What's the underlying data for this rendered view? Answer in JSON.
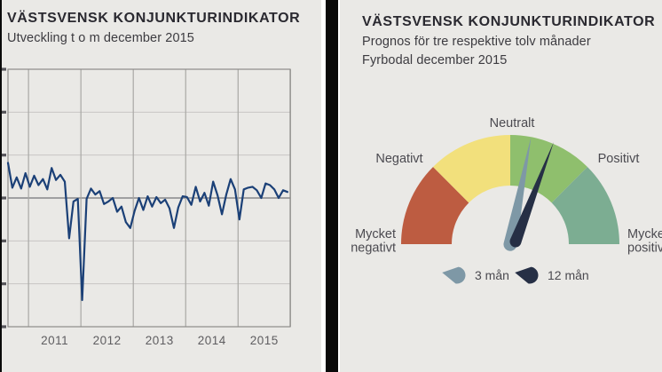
{
  "left_panel": {
    "title": "VÄSTSVENSK KONJUNKTURINDIKATOR",
    "subtitle": "Utveckling t o m december 2015"
  },
  "right_panel": {
    "title": "VÄSTSVENSK KONJUNKTURINDIKATOR",
    "subtitle_line1": "Prognos för tre respektive tolv månader",
    "subtitle_line2": "Fyrbodal december 2015"
  },
  "colors": {
    "panel_background": "#eae9e6",
    "divider_black": "#0a0a0a",
    "title_text": "#2a2930",
    "body_text": "#3c3b40",
    "axis_text": "#5e5d60"
  },
  "chart_data": [
    {
      "type": "line",
      "title": "VÄSTSVENSK KONJUNKTURINDIKATOR",
      "subtitle": "Utveckling t o m december 2015",
      "x_start": "2010-08",
      "x_end": "2015-12",
      "x_tick_labels": [
        "2011",
        "2012",
        "2013",
        "2014",
        "2015"
      ],
      "y_axis_labels_cut_off_at_image_edge": true,
      "ylim": [
        -15,
        15
      ],
      "y_gridline_step": 5,
      "zero_line": true,
      "grid": true,
      "line_color": "#1b4077",
      "values": [
        4.1,
        1.2,
        2.4,
        1.1,
        2.9,
        1.3,
        2.6,
        1.5,
        2.2,
        1.0,
        3.5,
        2.1,
        2.7,
        1.9,
        -4.7,
        -0.4,
        -0.1,
        -11.9,
        -0.1,
        1.1,
        0.4,
        0.8,
        -0.7,
        -0.4,
        0.0,
        -1.6,
        -1.0,
        -2.8,
        -3.5,
        -1.5,
        0.0,
        -1.4,
        0.2,
        -1.0,
        0.1,
        -0.6,
        -0.2,
        -1.2,
        -3.5,
        -1.1,
        0.2,
        0.1,
        -0.8,
        1.3,
        -0.4,
        0.6,
        -0.9,
        1.9,
        0.3,
        -1.9,
        0.4,
        2.2,
        1.0,
        -2.5,
        1.0,
        1.2,
        1.3,
        0.9,
        0.0,
        1.7,
        1.5,
        1.0,
        0.0,
        0.9,
        0.7
      ]
    },
    {
      "type": "gauge",
      "title": "VÄSTSVENSK KONJUNKTURINDIKATOR",
      "subtitle1": "Prognos för tre respektive tolv månader",
      "subtitle2": "Fyrbodal december 2015",
      "scale_labels": [
        "Mycket negativt",
        "Negativt",
        "Neutralt",
        "Positivt",
        "Mycket positivt"
      ],
      "segments": [
        {
          "name": "mycket-negativt",
          "from_deg": 180,
          "to_deg": 135,
          "color": "#bd5c41"
        },
        {
          "name": "negativt",
          "from_deg": 135,
          "to_deg": 90,
          "color": "#f2e07c"
        },
        {
          "name": "positivt",
          "from_deg": 90,
          "to_deg": 45,
          "color": "#8fbf6d"
        },
        {
          "name": "mycket-positivt",
          "from_deg": 45,
          "to_deg": 0,
          "color": "#7cad92"
        }
      ],
      "needles": [
        {
          "label": "3 mån",
          "color": "#7e98a6",
          "angle_deg_right_of_vertical": 11
        },
        {
          "label": "12 mån",
          "color": "#262f45",
          "angle_deg_right_of_vertical": 21
        }
      ],
      "legend_position": "below-gauge"
    }
  ]
}
